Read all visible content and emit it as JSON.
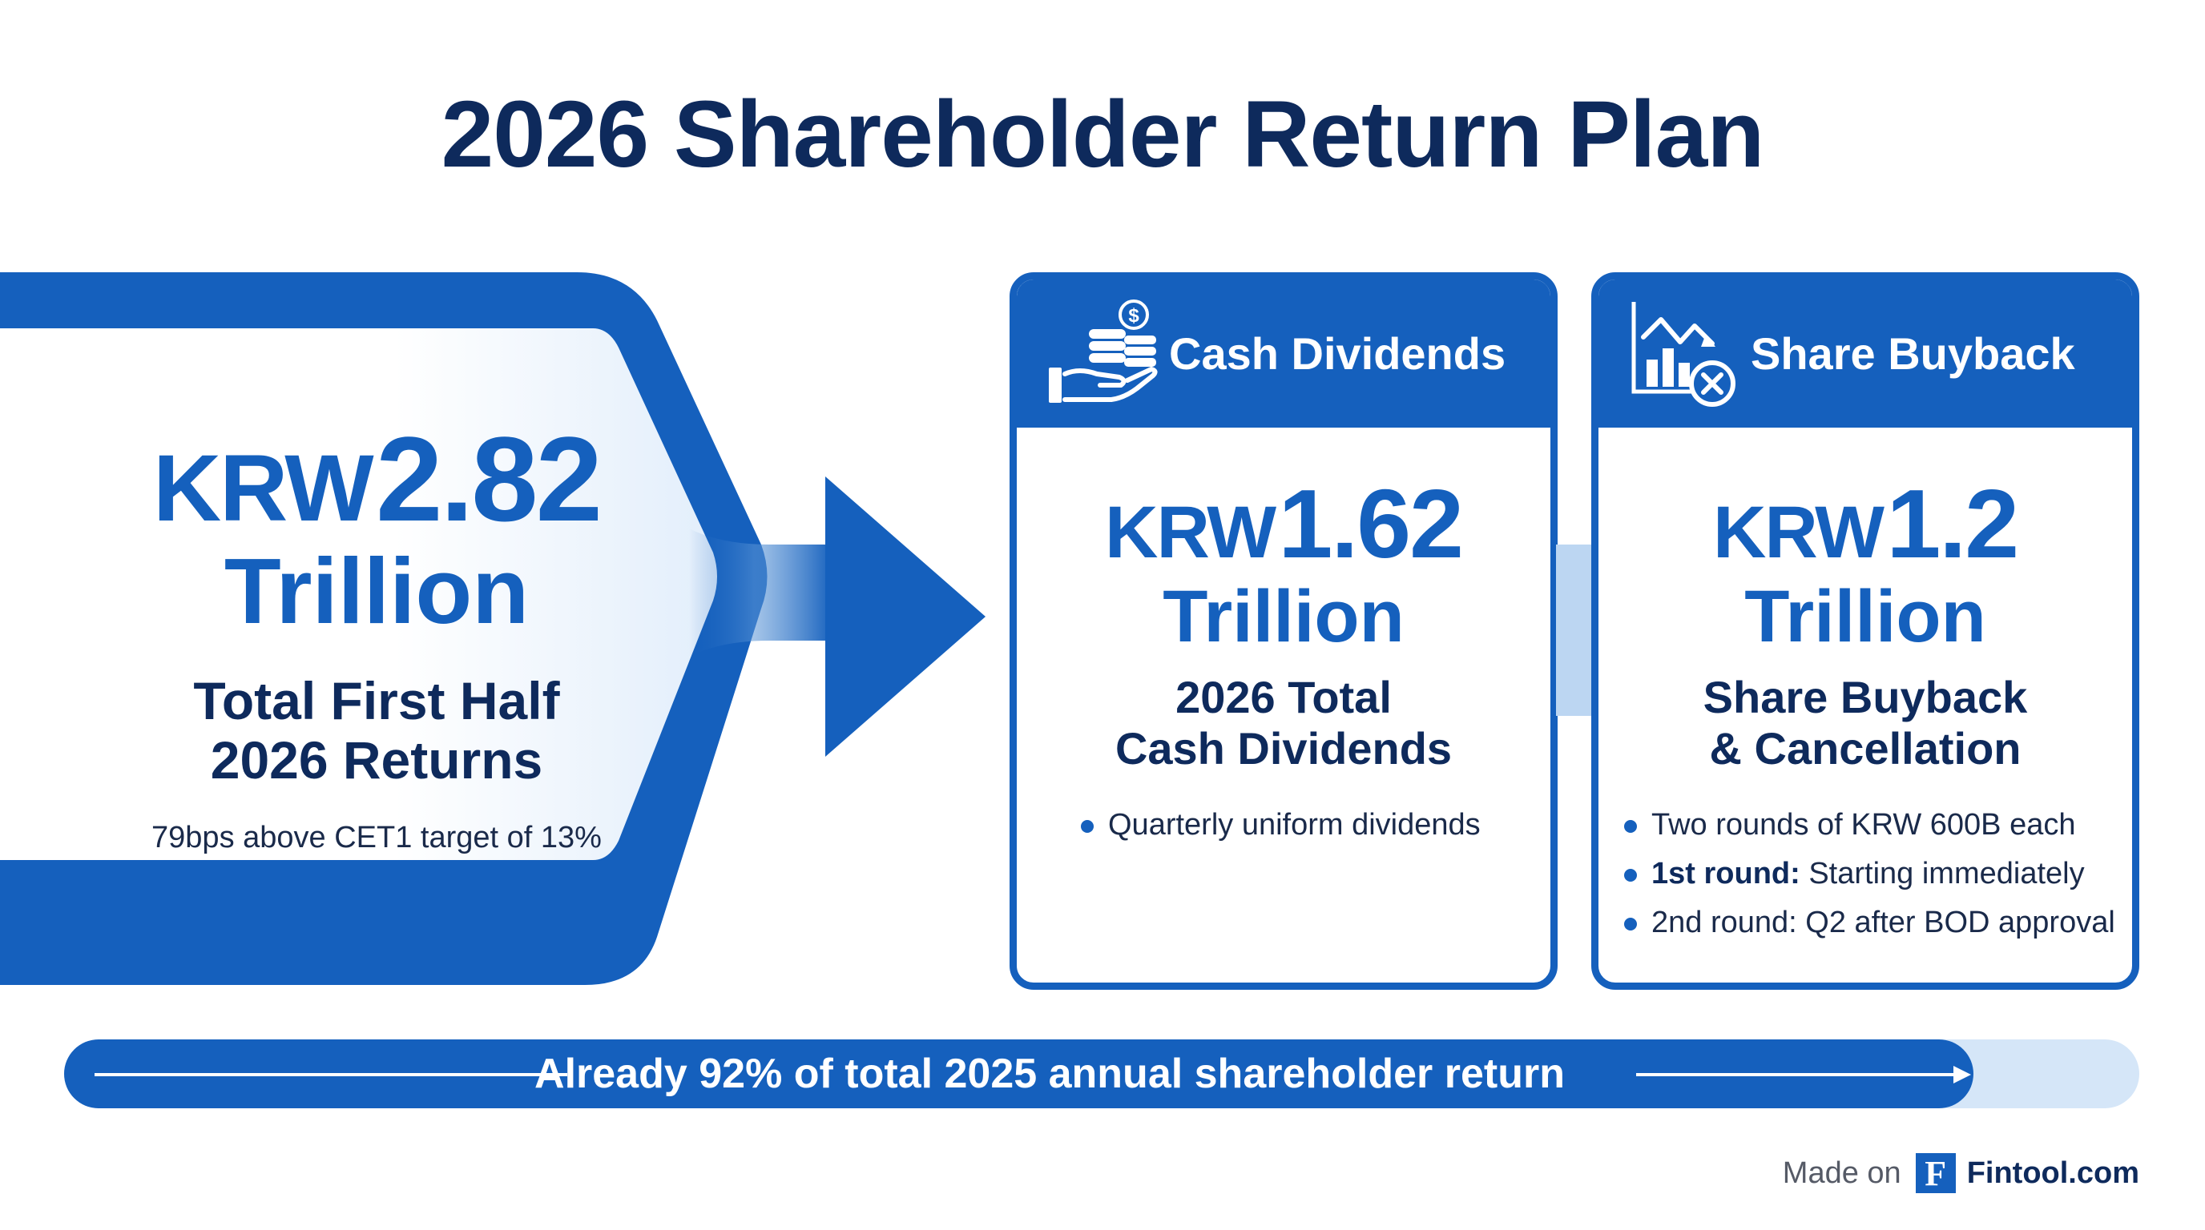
{
  "title": "2026 Shareholder Return Plan",
  "total": {
    "currency": "KRW",
    "amount": "2.82",
    "unit": "Trillion",
    "label_line1": "Total First Half",
    "label_line2": "2026 Returns",
    "note": "79bps above CET1 target of 13%"
  },
  "cards": [
    {
      "header": "Cash Dividends",
      "icon": "coins-hand-icon",
      "currency": "KRW",
      "amount": "1.62",
      "unit": "Trillion",
      "desc_line1": "2026 Total",
      "desc_line2": "Cash Dividends",
      "bullets": [
        {
          "bold": "",
          "text": "Quarterly uniform dividends"
        }
      ]
    },
    {
      "header": "Share Buyback",
      "icon": "chart-cancel-icon",
      "currency": "KRW",
      "amount": "1.2",
      "unit": "Trillion",
      "desc_line1": "Share Buyback",
      "desc_line2": "& Cancellation",
      "bullets": [
        {
          "bold": "",
          "text": "Two rounds of KRW 600B each"
        },
        {
          "bold": "1st round:",
          "text": " Starting immediately"
        },
        {
          "bold": "",
          "text": "2nd round: Q2 after BOD approval"
        }
      ]
    }
  ],
  "progress": {
    "text": "Already 92% of total 2025 annual shareholder return",
    "value_percent": 92
  },
  "footer": {
    "made_on": "Made on",
    "logo_letter": "F",
    "brand": "Fintool.com"
  },
  "colors": {
    "primary": "#1560bd",
    "title": "#0e2a5c",
    "light": "#d5e6f8"
  }
}
